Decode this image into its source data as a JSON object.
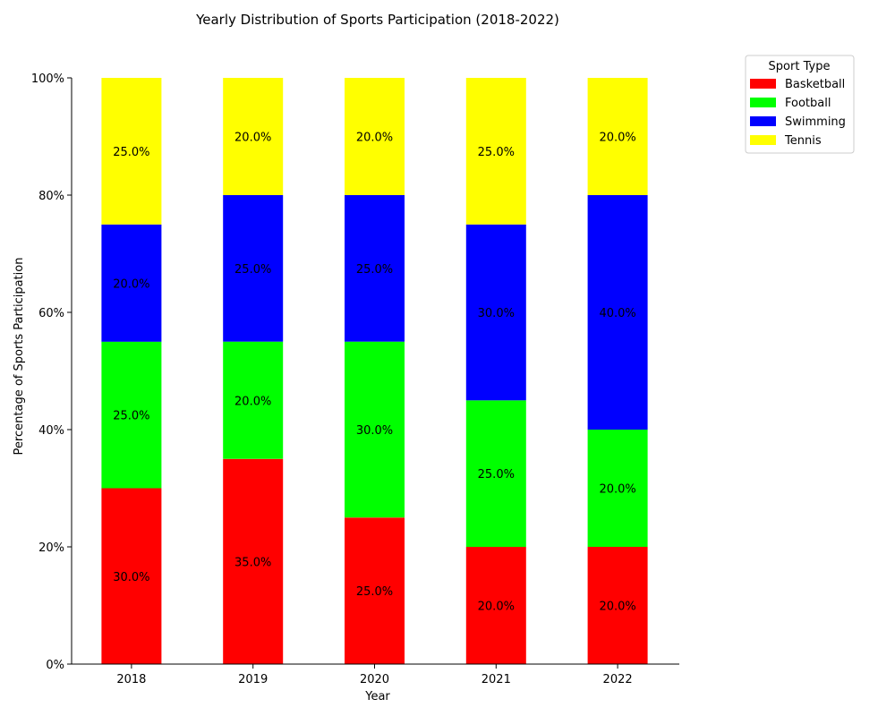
{
  "chart_data": {
    "type": "bar",
    "stacked": true,
    "title": "Yearly Distribution of Sports Participation (2018-2022)",
    "xlabel": "Year",
    "ylabel": "Percentage of Sports Participation",
    "categories": [
      "2018",
      "2019",
      "2020",
      "2021",
      "2022"
    ],
    "ylim": [
      0,
      100
    ],
    "yticks": [
      0,
      20,
      40,
      60,
      80,
      100
    ],
    "ytick_labels": [
      "0%",
      "20%",
      "40%",
      "60%",
      "80%",
      "100%"
    ],
    "legend": {
      "title": "Sport Type",
      "placement": "top-right, outside plot"
    },
    "grid": false,
    "series": [
      {
        "name": "Basketball",
        "color": "#ff0000",
        "values": [
          30,
          35,
          25,
          20,
          20
        ],
        "labels": [
          "30.0%",
          "35.0%",
          "25.0%",
          "20.0%",
          "20.0%"
        ]
      },
      {
        "name": "Football",
        "color": "#00ff00",
        "values": [
          25,
          20,
          30,
          25,
          20
        ],
        "labels": [
          "25.0%",
          "20.0%",
          "30.0%",
          "25.0%",
          "20.0%"
        ]
      },
      {
        "name": "Swimming",
        "color": "#0000ff",
        "values": [
          20,
          25,
          25,
          30,
          40
        ],
        "labels": [
          "20.0%",
          "25.0%",
          "25.0%",
          "30.0%",
          "40.0%"
        ]
      },
      {
        "name": "Tennis",
        "color": "#ffff00",
        "values": [
          25,
          20,
          20,
          25,
          20
        ],
        "labels": [
          "25.0%",
          "20.0%",
          "20.0%",
          "25.0%",
          "20.0%"
        ]
      }
    ]
  }
}
